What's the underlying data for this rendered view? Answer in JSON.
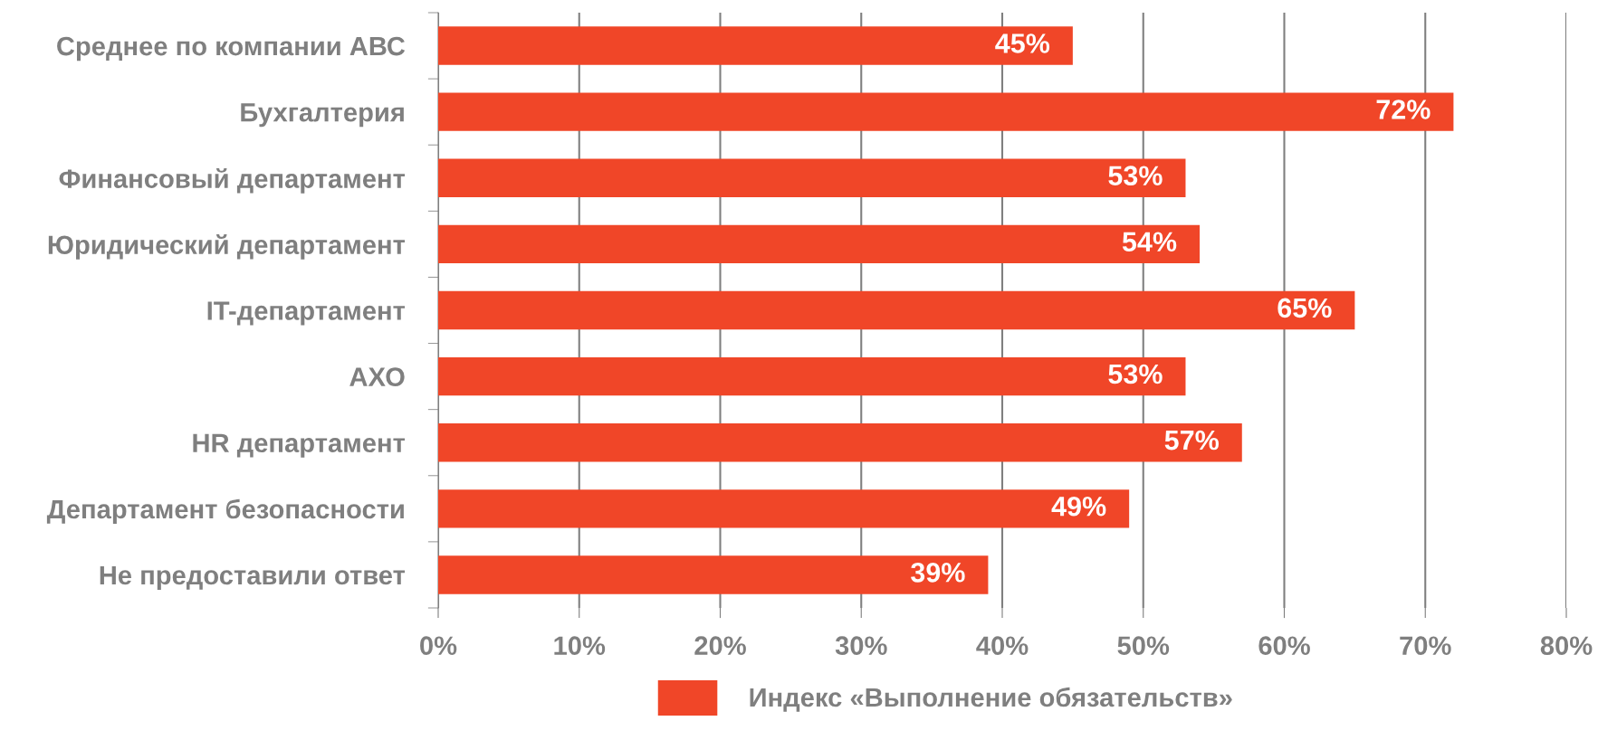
{
  "chart_data": {
    "type": "bar",
    "orientation": "horizontal",
    "categories": [
      "Среднее по компании АВС",
      "Бухгалтерия",
      "Финансовый департамент",
      "Юридический департамент",
      "IT-департамент",
      "АХО",
      "HR департамент",
      "Департамент безопасности",
      "Не предоставили ответ"
    ],
    "series": [
      {
        "name": "Индекс «Выполнение обязательств»",
        "color": "#f04628",
        "values": [
          45,
          72,
          53,
          54,
          65,
          53,
          57,
          49,
          39
        ],
        "value_labels": [
          "45%",
          "72%",
          "53%",
          "54%",
          "65%",
          "53%",
          "57%",
          "49%",
          "39%"
        ]
      }
    ],
    "xlim": [
      0,
      80
    ],
    "xticks": [
      {
        "value": 0,
        "label": "0%"
      },
      {
        "value": 10,
        "label": "10%"
      },
      {
        "value": 20,
        "label": "20%"
      },
      {
        "value": 30,
        "label": "30%"
      },
      {
        "value": 40,
        "label": "40%"
      },
      {
        "value": 50,
        "label": "50%"
      },
      {
        "value": 60,
        "label": "60%"
      },
      {
        "value": 70,
        "label": "70%"
      },
      {
        "value": 80,
        "label": "80%"
      }
    ],
    "grid": "x",
    "legend": "bottom"
  }
}
